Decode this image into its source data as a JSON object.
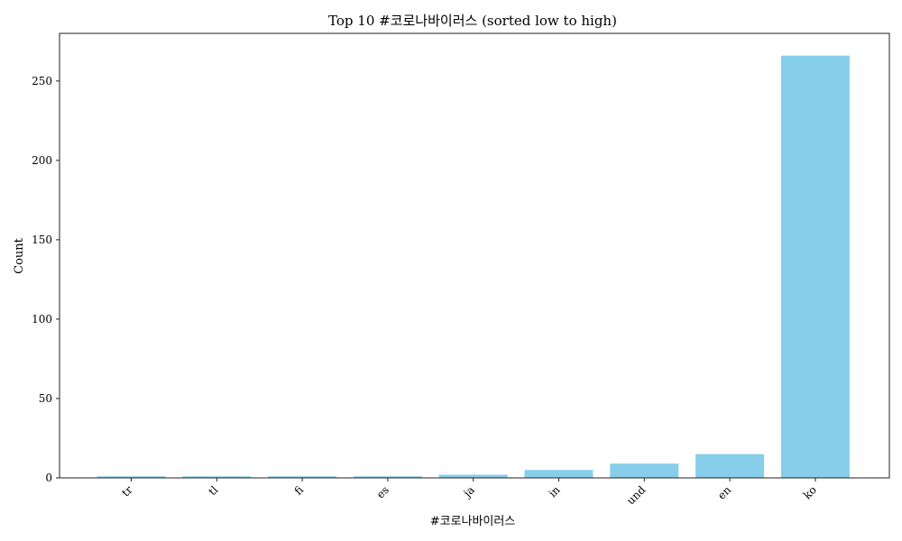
{
  "chart_data": {
    "type": "bar",
    "title": "Top 10 #코로나바이러스 (sorted low to high)",
    "xlabel": "#코로나바이러스",
    "ylabel": "Count",
    "categories": [
      "tr",
      "tl",
      "fi",
      "es",
      "ja",
      "in",
      "und",
      "en",
      "ko"
    ],
    "values": [
      1,
      1,
      1,
      1,
      2,
      5,
      9,
      15,
      266
    ],
    "ylim": [
      0,
      280
    ],
    "yticks": [
      0,
      50,
      100,
      150,
      200,
      250
    ],
    "grid": false,
    "bar_color": "#87CEEB"
  }
}
